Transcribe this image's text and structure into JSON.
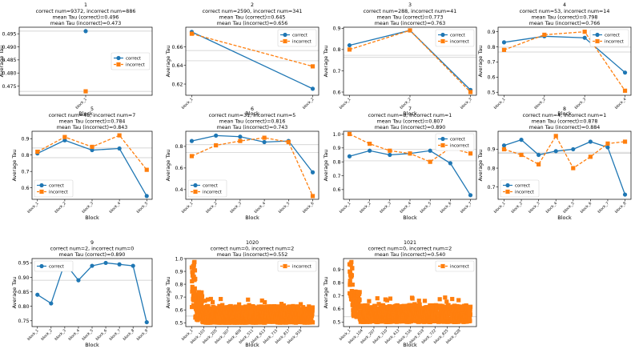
{
  "figure": {
    "xlabel": "Block",
    "ylabel": "Average Tau"
  },
  "colors": {
    "correct": "#1f77b4",
    "incorrect": "#ff7f0e",
    "axes": "#000000",
    "refline": "#c8c8c8"
  },
  "chart_data": [
    {
      "type": "line",
      "title": [
        "1",
        "correct num=9372, incorrect num=886",
        "mean Tau (correct)=0.496",
        "mean Tau (incorrect)=0.473"
      ],
      "xlabel": "Block",
      "ylabel": "Average Tau",
      "x": [
        "block_1"
      ],
      "tick_labels": [
        "block_1"
      ],
      "ylim": [
        0.4715,
        0.4975
      ],
      "yticks": [
        0.475,
        0.48,
        0.485,
        0.49,
        0.495
      ],
      "ytick_labels": [
        "0.475",
        "0.480",
        "0.485",
        "0.490",
        "0.495"
      ],
      "series": [
        {
          "name": "correct",
          "values": [
            0.496
          ]
        },
        {
          "name": "incorrect",
          "values": [
            0.473
          ]
        }
      ],
      "ref_lines": [
        0.496,
        0.473
      ],
      "legend": "center-right"
    },
    {
      "type": "line",
      "title": [
        "2",
        "correct num=2590, incorrect num=341",
        "mean Tau (correct)=0.645",
        "mean Tau (incorrect)=0.656"
      ],
      "xlabel": "Block",
      "ylabel": "Average Tau",
      "x": [
        "block_1",
        "block_2"
      ],
      "tick_labels": [
        "block_1",
        "block_2"
      ],
      "ylim": [
        0.608,
        0.681
      ],
      "yticks": [
        0.62,
        0.64,
        0.66
      ],
      "ytick_labels": [
        "0.62",
        "0.64",
        "0.66"
      ],
      "series": [
        {
          "name": "correct",
          "values": [
            0.676,
            0.615
          ]
        },
        {
          "name": "incorrect",
          "values": [
            0.674,
            0.639
          ]
        }
      ],
      "ref_lines": [
        0.645,
        0.656
      ],
      "legend": "upper right"
    },
    {
      "type": "line",
      "title": [
        "3",
        "correct num=288, incorrect num=41",
        "mean Tau (correct)=0.773",
        "mean Tau (incorrect)=0.763"
      ],
      "xlabel": "Block",
      "ylabel": "Average Tau",
      "x": [
        "block_1",
        "block_2",
        "block_3"
      ],
      "tick_labels": [
        "block_1",
        "block_2",
        "block_3"
      ],
      "ylim": [
        0.585,
        0.905
      ],
      "yticks": [
        0.6,
        0.7,
        0.8,
        0.9
      ],
      "ytick_labels": [
        "0.6",
        "0.7",
        "0.8",
        "0.9"
      ],
      "series": [
        {
          "name": "correct",
          "values": [
            0.82,
            0.89,
            0.61
          ]
        },
        {
          "name": "incorrect",
          "values": [
            0.8,
            0.89,
            0.6
          ]
        }
      ],
      "ref_lines": [
        0.773,
        0.763
      ],
      "legend": "upper right"
    },
    {
      "type": "line",
      "title": [
        "4",
        "correct num=53, incorrect num=14",
        "mean Tau (correct)=0.798",
        "mean Tau (incorrect)=0.766"
      ],
      "xlabel": "Block",
      "ylabel": "Average Tau",
      "x": [
        "block_1",
        "block_2",
        "block_3",
        "block_4"
      ],
      "tick_labels": [
        "block_1",
        "block_2",
        "block_3",
        "block_4"
      ],
      "ylim": [
        0.48,
        0.93
      ],
      "yticks": [
        0.5,
        0.6,
        0.7,
        0.8,
        0.9
      ],
      "ytick_labels": [
        "0.5",
        "0.6",
        "0.7",
        "0.8",
        "0.9"
      ],
      "series": [
        {
          "name": "correct",
          "values": [
            0.83,
            0.87,
            0.86,
            0.63
          ]
        },
        {
          "name": "incorrect",
          "values": [
            0.78,
            0.88,
            0.9,
            0.51
          ]
        }
      ],
      "ref_lines": [
        0.798,
        0.766
      ],
      "legend": "upper right"
    },
    {
      "type": "line",
      "title": [
        "5",
        "correct num=48, incorrect num=7",
        "mean Tau (correct)=0.784",
        "mean Tau (incorrect)=0.843"
      ],
      "xlabel": "Block",
      "ylabel": "Average Tau",
      "x": [
        "block_1",
        "block_2",
        "block_3",
        "block_4",
        "block_5"
      ],
      "tick_labels": [
        "block_1",
        "block_2",
        "block_3",
        "block_4",
        "block_5"
      ],
      "ylim": [
        0.53,
        0.945
      ],
      "yticks": [
        0.6,
        0.7,
        0.8,
        0.9
      ],
      "ytick_labels": [
        "0.6",
        "0.7",
        "0.8",
        "0.9"
      ],
      "series": [
        {
          "name": "correct",
          "values": [
            0.81,
            0.89,
            0.83,
            0.84,
            0.55
          ]
        },
        {
          "name": "incorrect",
          "values": [
            0.82,
            0.91,
            0.85,
            0.92,
            0.71
          ]
        }
      ],
      "ref_lines": [
        0.784,
        0.843
      ],
      "legend": "lower left"
    },
    {
      "type": "line",
      "title": [
        "6",
        "correct num=31, incorrect num=5",
        "mean Tau (correct)=0.816",
        "mean Tau (incorrect)=0.743"
      ],
      "xlabel": "Block",
      "ylabel": "Average Tau",
      "x": [
        "block_1",
        "block_2",
        "block_3",
        "block_4",
        "block_5",
        "block_6"
      ],
      "tick_labels": [
        "block_1",
        "block_2",
        "block_3",
        "block_4",
        "block_5",
        "block_6"
      ],
      "ylim": [
        0.31,
        0.94
      ],
      "yticks": [
        0.4,
        0.6,
        0.8
      ],
      "ytick_labels": [
        "0.4",
        "0.6",
        "0.8"
      ],
      "series": [
        {
          "name": "correct",
          "values": [
            0.85,
            0.9,
            0.89,
            0.84,
            0.85,
            0.56
          ]
        },
        {
          "name": "incorrect",
          "values": [
            0.71,
            0.81,
            0.85,
            0.88,
            0.84,
            0.34
          ]
        }
      ],
      "ref_lines": [
        0.816,
        0.743
      ],
      "legend": "lower left"
    },
    {
      "type": "line",
      "title": [
        "7",
        "correct num=8, incorrect num=1",
        "mean Tau (correct)=0.807",
        "mean Tau (incorrect)=0.890"
      ],
      "xlabel": "Block",
      "ylabel": "Average Tau",
      "x": [
        "block_1",
        "block_2",
        "block_3",
        "block_4",
        "block_5",
        "block_6",
        "block_7"
      ],
      "tick_labels": [
        "block_1",
        "block_2",
        "block_3",
        "block_4",
        "block_5",
        "block_6",
        "block_7"
      ],
      "ylim": [
        0.53,
        1.02
      ],
      "yticks": [
        0.6,
        0.7,
        0.8,
        0.9,
        1.0
      ],
      "ytick_labels": [
        "0.6",
        "0.7",
        "0.8",
        "0.9",
        "1.0"
      ],
      "series": [
        {
          "name": "correct",
          "values": [
            0.84,
            0.88,
            0.85,
            0.86,
            0.88,
            0.79,
            0.56
          ]
        },
        {
          "name": "incorrect",
          "values": [
            1.0,
            0.93,
            0.88,
            0.86,
            0.8,
            0.9,
            0.86
          ]
        }
      ],
      "ref_lines": [
        0.807,
        0.89
      ],
      "legend": "upper right"
    },
    {
      "type": "line",
      "title": [
        "8",
        "correct num=4, incorrect num=1",
        "mean Tau (correct)=0.878",
        "mean Tau (incorrect)=0.884"
      ],
      "xlabel": "Block",
      "ylabel": "Average Tau",
      "x": [
        "block_1",
        "block_2",
        "block_3",
        "block_4",
        "block_5",
        "block_6",
        "block_7",
        "block_8"
      ],
      "tick_labels": [
        "block_1",
        "block_2",
        "block_3",
        "block_4",
        "block_5",
        "block_6",
        "block_7",
        "block_8"
      ],
      "ylim": [
        0.635,
        0.995
      ],
      "yticks": [
        0.7,
        0.8,
        0.9
      ],
      "ytick_labels": [
        "0.7",
        "0.8",
        "0.9"
      ],
      "series": [
        {
          "name": "correct",
          "values": [
            0.92,
            0.95,
            0.87,
            0.89,
            0.9,
            0.94,
            0.91,
            0.66
          ]
        },
        {
          "name": "incorrect",
          "values": [
            0.9,
            0.87,
            0.82,
            0.97,
            0.8,
            0.86,
            0.93,
            0.94
          ]
        }
      ],
      "ref_lines": [
        0.878,
        0.884
      ],
      "legend": "lower left"
    },
    {
      "type": "line",
      "title": [
        "9",
        "correct num=2, incorrect num=0",
        "mean Tau (correct)=0.890"
      ],
      "xlabel": "Block",
      "ylabel": "Average Tau",
      "x": [
        "block_1",
        "block_2",
        "block_3",
        "block_4",
        "block_5",
        "block_6",
        "block_7",
        "block_8",
        "block_9"
      ],
      "tick_labels": [
        "block_1",
        "block_2",
        "block_3",
        "block_4",
        "block_5",
        "block_6",
        "block_7",
        "block_8",
        "block_9"
      ],
      "ylim": [
        0.73,
        0.965
      ],
      "yticks": [
        0.75,
        0.8,
        0.85,
        0.9,
        0.95
      ],
      "ytick_labels": [
        "0.75",
        "0.80",
        "0.85",
        "0.90",
        "0.95"
      ],
      "series": [
        {
          "name": "correct",
          "values": [
            0.84,
            0.81,
            0.95,
            0.89,
            0.94,
            0.95,
            0.945,
            0.94,
            0.745
          ]
        }
      ],
      "ref_lines": [
        0.89
      ],
      "legend": "upper left"
    },
    {
      "type": "scatter",
      "title": [
        "1020",
        "correct num=0, incorrect num=2",
        "mean Tau (incorrect)=0.552"
      ],
      "xlabel": "Block",
      "ylabel": "Average Tau",
      "n_blocks": 1020,
      "tick_labels": [
        "block_1",
        "block_103",
        "block_205",
        "block_307",
        "block_409",
        "block_511",
        "block_613",
        "block_715",
        "block_817",
        "block_919"
      ],
      "ylim": [
        0.47,
        1.0
      ],
      "yticks": [
        0.5,
        0.6,
        0.7,
        0.8,
        0.9,
        1.0
      ],
      "ytick_labels": [
        "0.5",
        "0.6",
        "0.7",
        "0.8",
        "0.9",
        "1.0"
      ],
      "series": [
        {
          "name": "incorrect",
          "values": [],
          "note": "1020 per-block points; early blocks reach 0.98, remainder mostly 0.50-0.65"
        }
      ],
      "ref_lines": [
        0.552
      ],
      "legend": "upper right"
    },
    {
      "type": "scatter",
      "title": [
        "1021",
        "correct num=0, incorrect num=2",
        "mean Tau (incorrect)=0.540"
      ],
      "xlabel": "Block",
      "ylabel": "Average Tau",
      "n_blocks": 1021,
      "tick_labels": [
        "block_1",
        "block_104",
        "block_207",
        "block_310",
        "block_413",
        "block_516",
        "block_619",
        "block_722",
        "block_825",
        "block_928"
      ],
      "ylim": [
        0.465,
        0.985
      ],
      "yticks": [
        0.5,
        0.6,
        0.7,
        0.8,
        0.9
      ],
      "ytick_labels": [
        "0.5",
        "0.6",
        "0.7",
        "0.8",
        "0.9"
      ],
      "series": [
        {
          "name": "incorrect",
          "values": [],
          "note": "1021 per-block points; early blocks reach 0.96, remainder mostly 0.50-0.62"
        }
      ],
      "ref_lines": [
        0.54
      ],
      "legend": "upper right"
    }
  ]
}
